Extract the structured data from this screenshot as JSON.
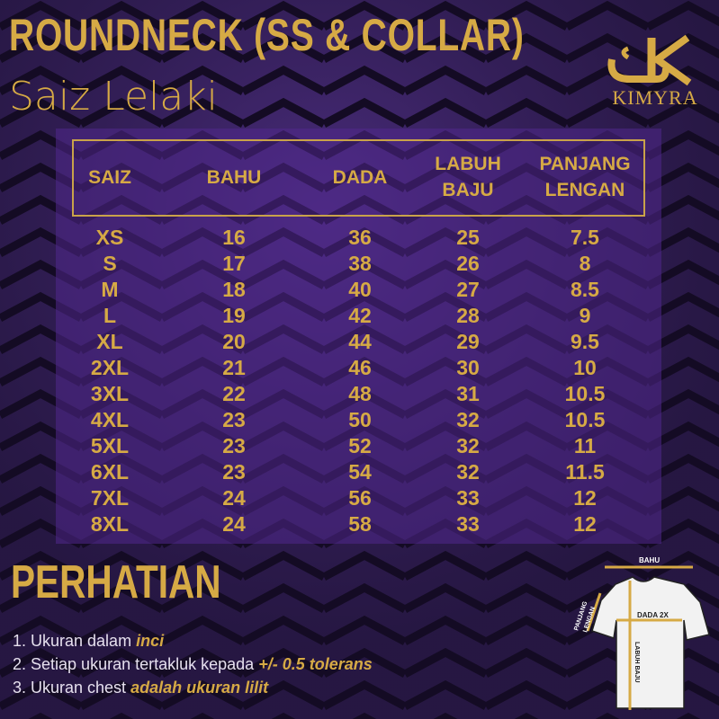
{
  "title": "ROUNDNECK (SS & COLLAR)",
  "subtitle": "Saiz Lelaki",
  "logo": {
    "brand": "KIMYRA"
  },
  "colors": {
    "gold": "#d6aa45",
    "background": "#2b1a4a",
    "panel": "#50288c"
  },
  "table": {
    "headers": [
      [
        "SAIZ"
      ],
      [
        "BAHU"
      ],
      [
        "DADA"
      ],
      [
        "LABUH",
        "BAJU"
      ],
      [
        "PANJANG",
        "LENGAN"
      ]
    ],
    "rows": [
      [
        "XS",
        "16",
        "36",
        "25",
        "7.5"
      ],
      [
        "S",
        "17",
        "38",
        "26",
        "8"
      ],
      [
        "M",
        "18",
        "40",
        "27",
        "8.5"
      ],
      [
        "L",
        "19",
        "42",
        "28",
        "9"
      ],
      [
        "XL",
        "20",
        "44",
        "29",
        "9.5"
      ],
      [
        "2XL",
        "21",
        "46",
        "30",
        "10"
      ],
      [
        "3XL",
        "22",
        "48",
        "31",
        "10.5"
      ],
      [
        "4XL",
        "23",
        "50",
        "32",
        "10.5"
      ],
      [
        "5XL",
        "23",
        "52",
        "32",
        "11"
      ],
      [
        "6XL",
        "23",
        "54",
        "32",
        "11.5"
      ],
      [
        "7XL",
        "24",
        "56",
        "33",
        "12"
      ],
      [
        "8XL",
        "24",
        "58",
        "33",
        "12"
      ]
    ]
  },
  "notice": {
    "heading": "PERHATIAN",
    "notes": [
      {
        "text": "1. Ukuran dalam ",
        "emph": "inci"
      },
      {
        "text": "2. Setiap ukuran tertakluk kepada ",
        "emph": "+/- 0.5 tolerans"
      },
      {
        "text": "3. Ukuran chest ",
        "emph": "adalah ukuran lilit"
      }
    ]
  },
  "diagram": {
    "bahu": "BAHU",
    "dada": "DADA 2X",
    "labuh": "LABUH BAJU",
    "panjang": "PANJANG",
    "lengan": "LENGAN"
  }
}
